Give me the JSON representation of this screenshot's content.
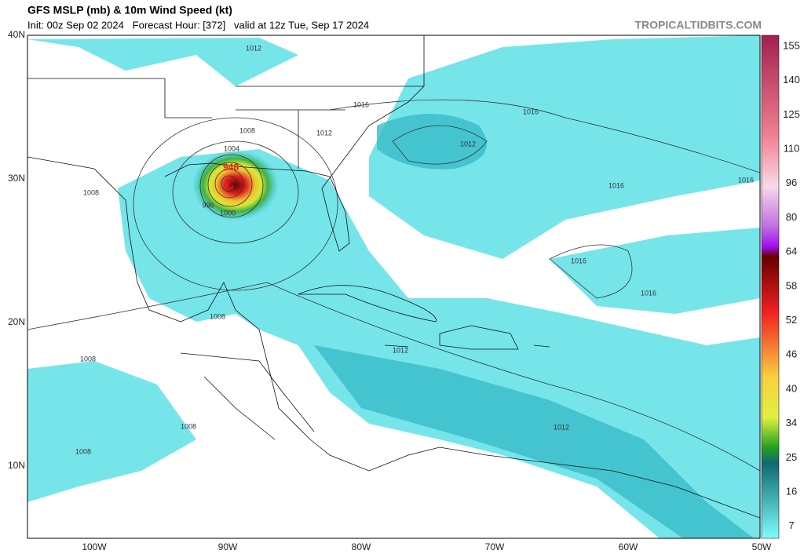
{
  "header": {
    "title": "GFS MSLP (mb) & 10m Wind Speed (kt)",
    "subtitle": "Init: 00z Sep 02 2024   Forecast Hour: [372]   valid at 12z Tue, Sep 17 2024",
    "site": "TROPICALTIDBITS.COM"
  },
  "map": {
    "lat_labels": [
      "40N",
      "30N",
      "20N",
      "10N"
    ],
    "lon_labels": [
      "100W",
      "90W",
      "80W",
      "70W",
      "60W",
      "50W"
    ],
    "isobar_labels": [
      "1012",
      "1016",
      "1008",
      "1012",
      "1016",
      "1012",
      "1004",
      "948",
      "L",
      "996",
      "1000",
      "1008",
      "1016",
      "1016",
      "1016",
      "1016",
      "1008",
      "1012",
      "1008",
      "1008",
      "1012",
      "1008"
    ]
  },
  "colorbar": {
    "labels": [
      "155",
      "140",
      "125",
      "110",
      "96",
      "80",
      "64",
      "58",
      "52",
      "46",
      "40",
      "34",
      "25",
      "16",
      "7"
    ]
  }
}
